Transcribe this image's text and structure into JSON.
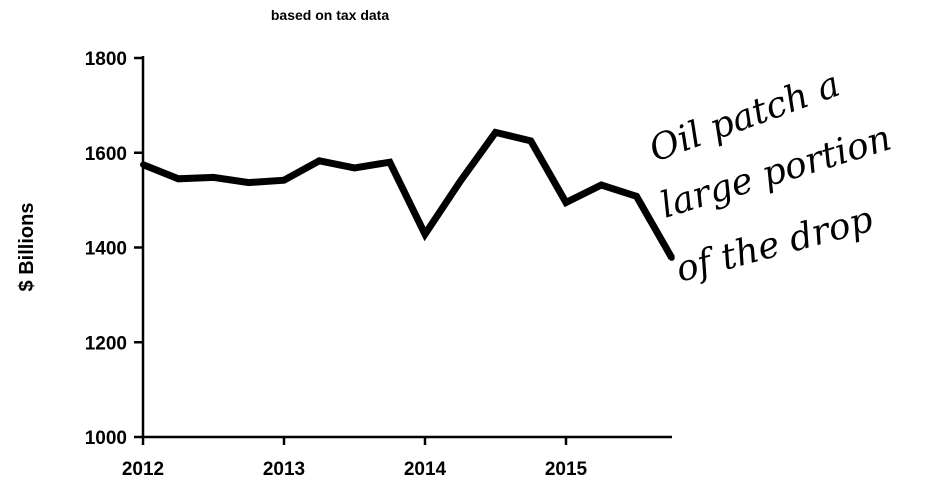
{
  "chart_data": {
    "type": "line",
    "title": "",
    "subtitle": "based on tax data",
    "xlabel": "",
    "ylabel": "$ Billions",
    "xlim": [
      2012,
      2015.75
    ],
    "ylim": [
      1000,
      1800
    ],
    "x_ticks": [
      2012,
      2013,
      2014,
      2015
    ],
    "x_tick_labels": [
      "2012",
      "2013",
      "2014",
      "2015"
    ],
    "y_ticks": [
      1000,
      1200,
      1400,
      1600,
      1800
    ],
    "y_tick_labels": [
      "1000",
      "1200",
      "1400",
      "1600",
      "1800"
    ],
    "grid": false,
    "legend": "none",
    "line_color": "#000000",
    "series": [
      {
        "x": [
          2012,
          2012.25,
          2012.5,
          2012.75,
          2013,
          2013.25,
          2013.5,
          2013.75,
          2014,
          2014.25,
          2014.5,
          2014.75,
          2015,
          2015.25,
          2015.5,
          2015.75
        ],
        "values": [
          1575,
          1545,
          1548,
          1537,
          1542,
          1583,
          1568,
          1580,
          1428,
          1540,
          1643,
          1625,
          1495,
          1532,
          1508,
          1378
        ]
      }
    ],
    "annotations": [
      {
        "text_lines": [
          "Oil patch a",
          "large portion",
          "of the drop"
        ],
        "style": "handwritten"
      }
    ]
  }
}
